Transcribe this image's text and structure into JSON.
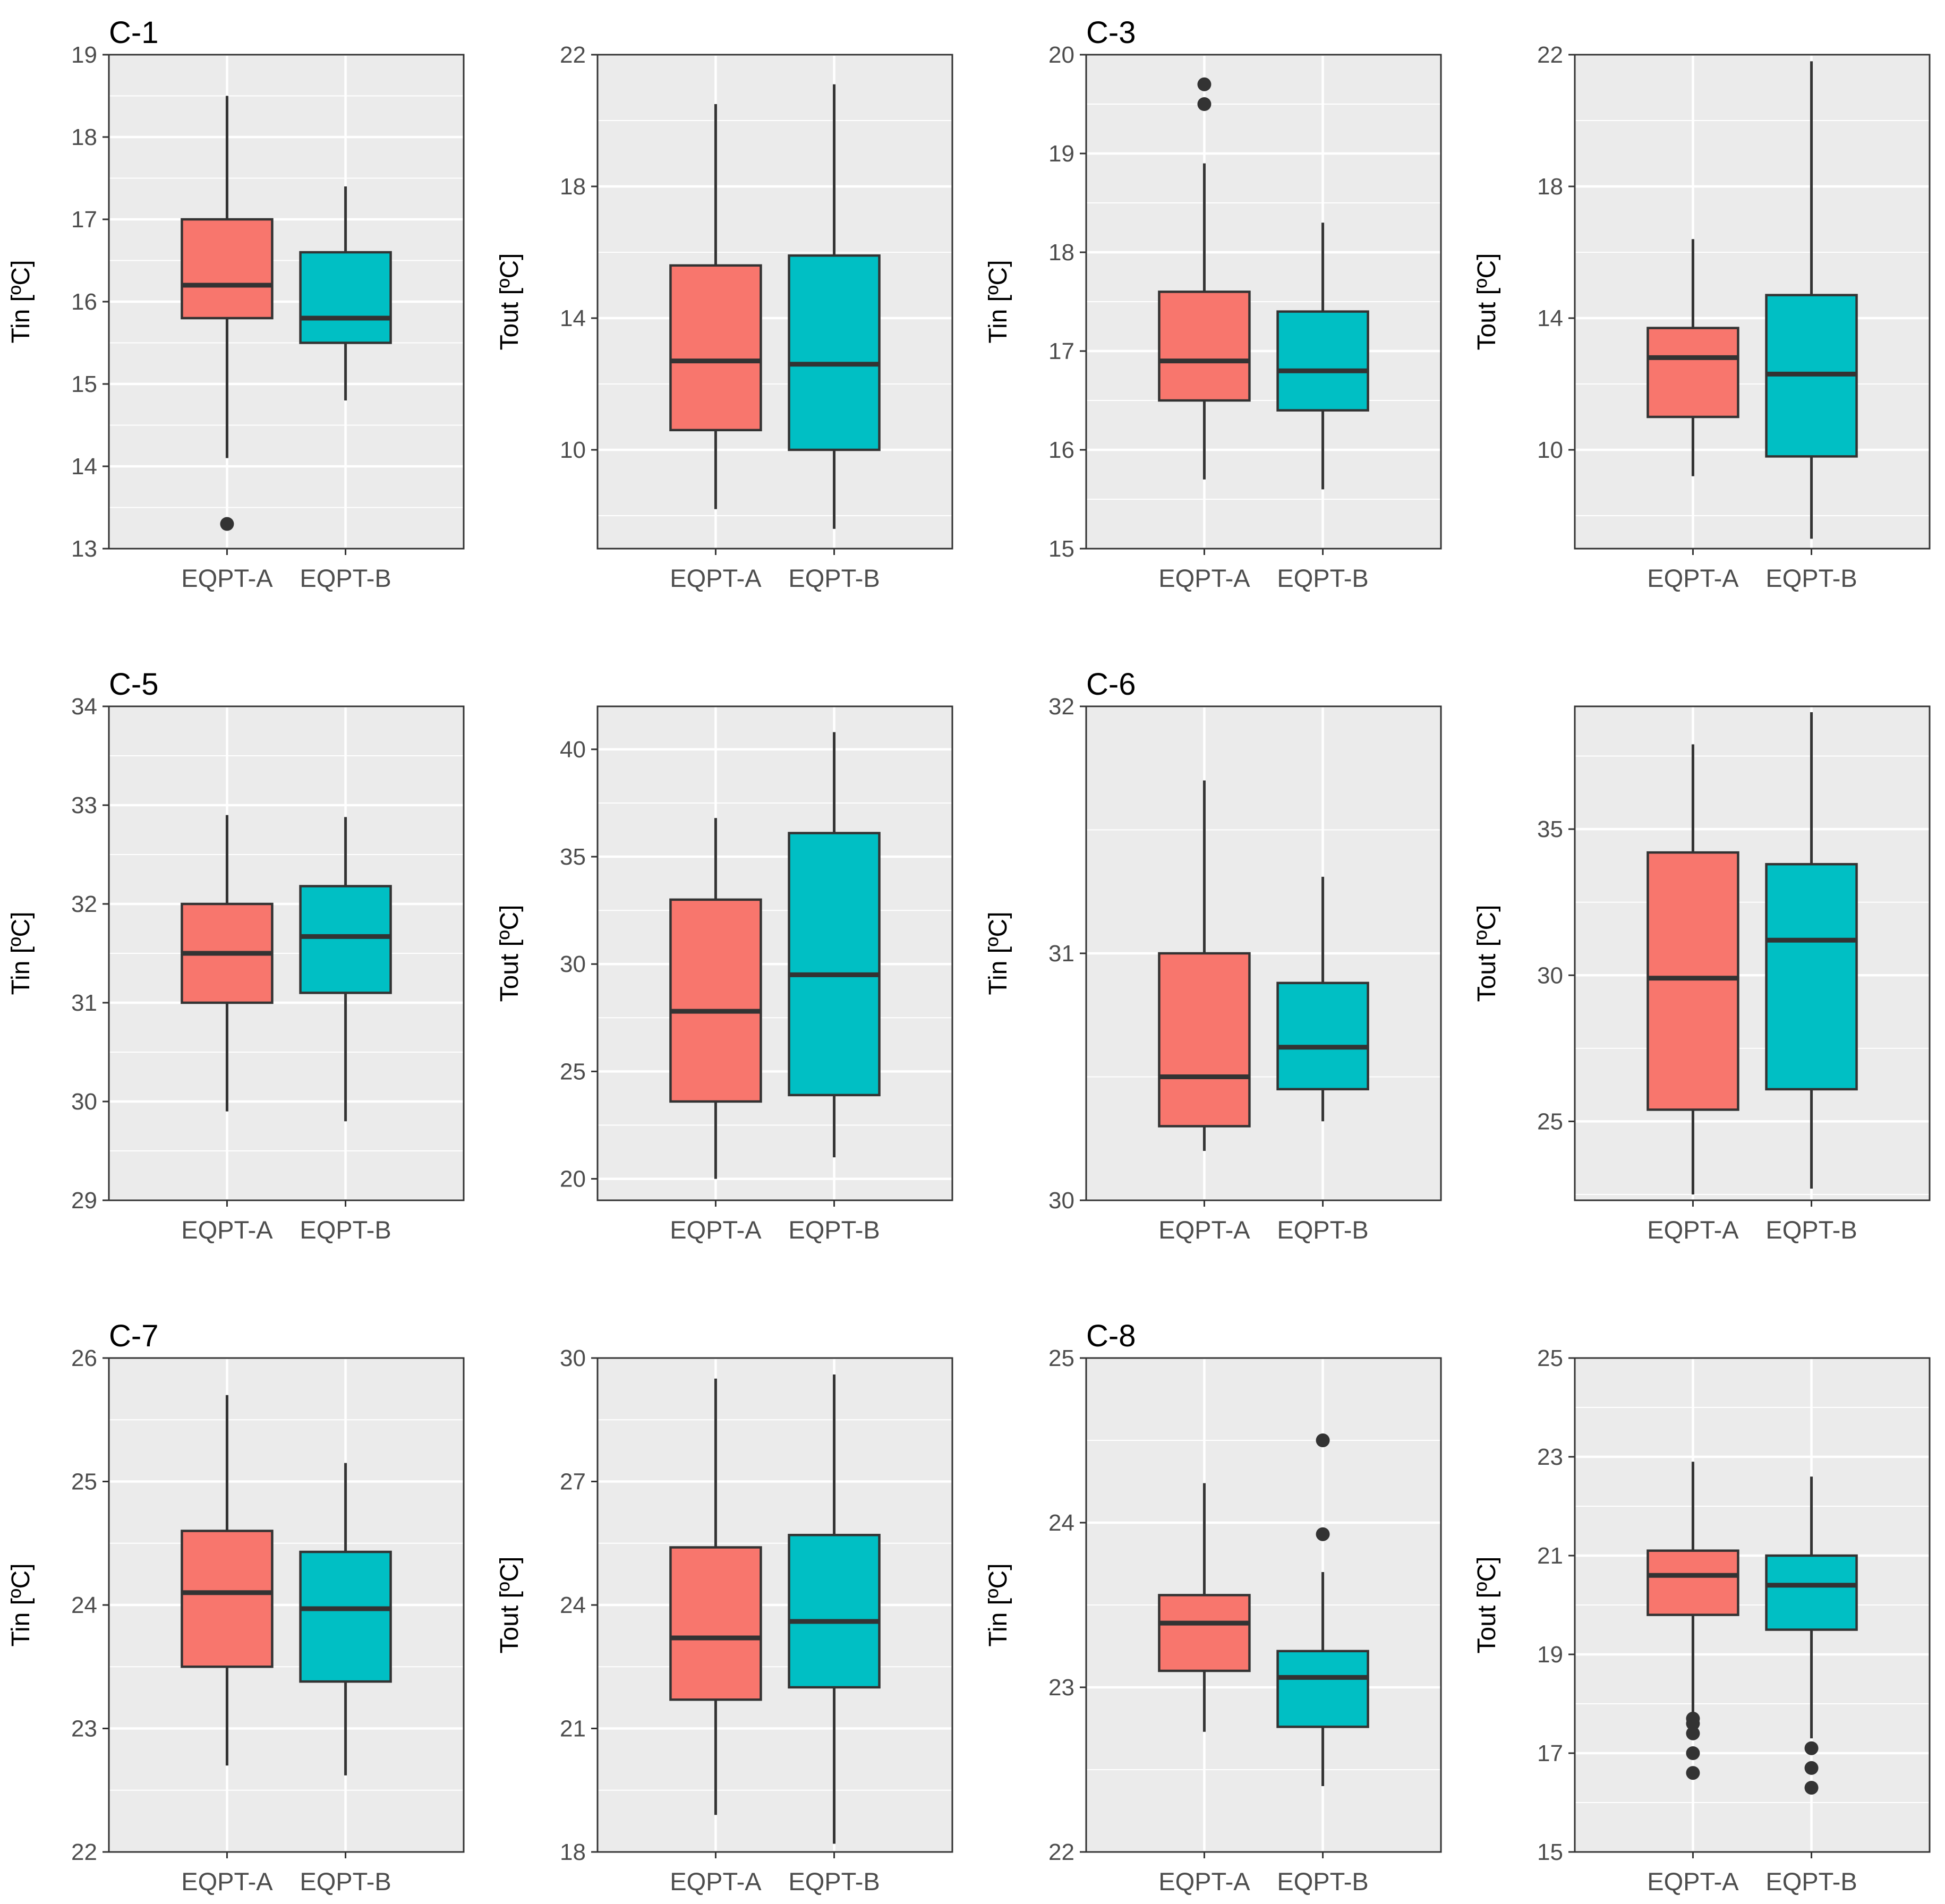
{
  "colors": {
    "eqpt_a": "#F8766D",
    "eqpt_b": "#00BFC4",
    "panel_bg": "#EBEBEB",
    "grid": "#FFFFFF",
    "ink": "#333333",
    "tick_text": "#4D4D4D",
    "title_text": "#000000"
  },
  "chart_data": [
    {
      "type": "boxplot",
      "title": "C-1",
      "ylabel": "Tin [ºC]",
      "categories": [
        "EQPT-A",
        "EQPT-B"
      ],
      "ylim": [
        13,
        19
      ],
      "yticks": [
        13,
        14,
        15,
        16,
        17,
        18,
        19
      ],
      "ytick_labels": [
        "13",
        "14",
        "15",
        "16",
        "17",
        "18",
        "19"
      ],
      "series": [
        {
          "name": "EQPT-A",
          "whisker_low": 14.1,
          "q1": 15.8,
          "median": 16.2,
          "q3": 17.0,
          "whisker_high": 18.5,
          "outliers": [
            13.3
          ]
        },
        {
          "name": "EQPT-B",
          "whisker_low": 14.8,
          "q1": 15.5,
          "median": 15.8,
          "q3": 16.6,
          "whisker_high": 17.4,
          "outliers": []
        }
      ]
    },
    {
      "type": "boxplot",
      "title": "",
      "ylabel": "Tout [ºC]",
      "categories": [
        "EQPT-A",
        "EQPT-B"
      ],
      "ylim": [
        7,
        22
      ],
      "yticks": [
        10,
        14,
        18,
        22
      ],
      "ytick_labels": [
        "10",
        "14",
        "18",
        "22"
      ],
      "series": [
        {
          "name": "EQPT-A",
          "whisker_low": 8.2,
          "q1": 10.6,
          "median": 12.7,
          "q3": 15.6,
          "whisker_high": 20.5,
          "outliers": []
        },
        {
          "name": "EQPT-B",
          "whisker_low": 7.6,
          "q1": 10.0,
          "median": 12.6,
          "q3": 15.9,
          "whisker_high": 21.1,
          "outliers": []
        }
      ]
    },
    {
      "type": "boxplot",
      "title": "C-3",
      "ylabel": "Tin [ºC]",
      "categories": [
        "EQPT-A",
        "EQPT-B"
      ],
      "ylim": [
        15,
        20
      ],
      "yticks": [
        15,
        16,
        17,
        18,
        19,
        20
      ],
      "ytick_labels": [
        "15",
        "16",
        "17",
        "18",
        "19",
        "20"
      ],
      "series": [
        {
          "name": "EQPT-A",
          "whisker_low": 15.7,
          "q1": 16.5,
          "median": 16.9,
          "q3": 17.6,
          "whisker_high": 18.9,
          "outliers": [
            19.5,
            19.7
          ]
        },
        {
          "name": "EQPT-B",
          "whisker_low": 15.6,
          "q1": 16.4,
          "median": 16.8,
          "q3": 17.4,
          "whisker_high": 18.3,
          "outliers": []
        }
      ]
    },
    {
      "type": "boxplot",
      "title": "",
      "ylabel": "Tout [ºC]",
      "categories": [
        "EQPT-A",
        "EQPT-B"
      ],
      "ylim": [
        7,
        22
      ],
      "yticks": [
        10,
        14,
        18,
        22
      ],
      "ytick_labels": [
        "10",
        "14",
        "18",
        "22"
      ],
      "series": [
        {
          "name": "EQPT-A",
          "whisker_low": 9.2,
          "q1": 11.0,
          "median": 12.8,
          "q3": 13.7,
          "whisker_high": 16.4,
          "outliers": []
        },
        {
          "name": "EQPT-B",
          "whisker_low": 7.3,
          "q1": 9.8,
          "median": 12.3,
          "q3": 14.7,
          "whisker_high": 21.8,
          "outliers": []
        }
      ]
    },
    {
      "type": "boxplot",
      "title": "C-5",
      "ylabel": "Tin [ºC]",
      "categories": [
        "EQPT-A",
        "EQPT-B"
      ],
      "ylim": [
        29,
        34
      ],
      "yticks": [
        29,
        30,
        31,
        32,
        33,
        34
      ],
      "ytick_labels": [
        "29",
        "30",
        "31",
        "32",
        "33",
        "34"
      ],
      "series": [
        {
          "name": "EQPT-A",
          "whisker_low": 29.9,
          "q1": 31.0,
          "median": 31.5,
          "q3": 32.0,
          "whisker_high": 32.9,
          "outliers": []
        },
        {
          "name": "EQPT-B",
          "whisker_low": 29.8,
          "q1": 31.1,
          "median": 31.67,
          "q3": 32.18,
          "whisker_high": 32.88,
          "outliers": []
        }
      ]
    },
    {
      "type": "boxplot",
      "title": "",
      "ylabel": "Tout [ºC]",
      "categories": [
        "EQPT-A",
        "EQPT-B"
      ],
      "ylim": [
        19,
        42
      ],
      "yticks": [
        20,
        25,
        30,
        35,
        40
      ],
      "ytick_labels": [
        "20",
        "25",
        "30",
        "35",
        "40"
      ],
      "series": [
        {
          "name": "EQPT-A",
          "whisker_low": 20.0,
          "q1": 23.6,
          "median": 27.8,
          "q3": 33.0,
          "whisker_high": 36.8,
          "outliers": []
        },
        {
          "name": "EQPT-B",
          "whisker_low": 21.0,
          "q1": 23.9,
          "median": 29.5,
          "q3": 36.1,
          "whisker_high": 40.8,
          "outliers": []
        }
      ]
    },
    {
      "type": "boxplot",
      "title": "C-6",
      "ylabel": "Tin [ºC]",
      "categories": [
        "EQPT-A",
        "EQPT-B"
      ],
      "ylim": [
        30,
        32
      ],
      "yticks": [
        30,
        31,
        32
      ],
      "ytick_labels": [
        "30",
        "31",
        "32"
      ],
      "series": [
        {
          "name": "EQPT-A",
          "whisker_low": 30.2,
          "q1": 30.3,
          "median": 30.5,
          "q3": 31.0,
          "whisker_high": 31.7,
          "outliers": []
        },
        {
          "name": "EQPT-B",
          "whisker_low": 30.32,
          "q1": 30.45,
          "median": 30.62,
          "q3": 30.88,
          "whisker_high": 31.31,
          "outliers": []
        }
      ]
    },
    {
      "type": "boxplot",
      "title": "",
      "ylabel": "Tout [ºC]",
      "categories": [
        "EQPT-A",
        "EQPT-B"
      ],
      "ylim": [
        22.3,
        39.2
      ],
      "yticks": [
        25,
        30,
        35
      ],
      "ytick_labels": [
        "25",
        "30",
        "35"
      ],
      "series": [
        {
          "name": "EQPT-A",
          "whisker_low": 22.5,
          "q1": 25.4,
          "median": 29.9,
          "q3": 34.2,
          "whisker_high": 37.9,
          "outliers": []
        },
        {
          "name": "EQPT-B",
          "whisker_low": 22.7,
          "q1": 26.1,
          "median": 31.2,
          "q3": 33.8,
          "whisker_high": 39.0,
          "outliers": []
        }
      ]
    },
    {
      "type": "boxplot",
      "title": "C-7",
      "ylabel": "Tin [ºC]",
      "categories": [
        "EQPT-A",
        "EQPT-B"
      ],
      "ylim": [
        22,
        26
      ],
      "yticks": [
        22,
        23,
        24,
        25,
        26
      ],
      "ytick_labels": [
        "22",
        "23",
        "24",
        "25",
        "26"
      ],
      "series": [
        {
          "name": "EQPT-A",
          "whisker_low": 22.7,
          "q1": 23.5,
          "median": 24.1,
          "q3": 24.6,
          "whisker_high": 25.7,
          "outliers": []
        },
        {
          "name": "EQPT-B",
          "whisker_low": 22.62,
          "q1": 23.38,
          "median": 23.97,
          "q3": 24.43,
          "whisker_high": 25.15,
          "outliers": []
        }
      ]
    },
    {
      "type": "boxplot",
      "title": "",
      "ylabel": "Tout [ºC]",
      "categories": [
        "EQPT-A",
        "EQPT-B"
      ],
      "ylim": [
        18,
        30
      ],
      "yticks": [
        18,
        21,
        24,
        27,
        30
      ],
      "ytick_labels": [
        "18",
        "21",
        "24",
        "27",
        "30"
      ],
      "series": [
        {
          "name": "EQPT-A",
          "whisker_low": 18.9,
          "q1": 21.7,
          "median": 23.2,
          "q3": 25.4,
          "whisker_high": 29.5,
          "outliers": []
        },
        {
          "name": "EQPT-B",
          "whisker_low": 18.2,
          "q1": 22.0,
          "median": 23.6,
          "q3": 25.7,
          "whisker_high": 29.6,
          "outliers": []
        }
      ]
    },
    {
      "type": "boxplot",
      "title": "C-8",
      "ylabel": "Tin [ºC]",
      "categories": [
        "EQPT-A",
        "EQPT-B"
      ],
      "ylim": [
        22,
        25
      ],
      "yticks": [
        22,
        23,
        24,
        25
      ],
      "ytick_labels": [
        "22",
        "23",
        "24",
        "25"
      ],
      "series": [
        {
          "name": "EQPT-A",
          "whisker_low": 22.73,
          "q1": 23.1,
          "median": 23.39,
          "q3": 23.56,
          "whisker_high": 24.24,
          "outliers": []
        },
        {
          "name": "EQPT-B",
          "whisker_low": 22.4,
          "q1": 22.76,
          "median": 23.06,
          "q3": 23.22,
          "whisker_high": 23.7,
          "outliers": [
            23.93,
            24.5
          ]
        }
      ]
    },
    {
      "type": "boxplot",
      "title": "",
      "ylabel": "Tout [ºC]",
      "categories": [
        "EQPT-A",
        "EQPT-B"
      ],
      "ylim": [
        15,
        25
      ],
      "yticks": [
        15,
        17,
        19,
        21,
        23,
        25
      ],
      "ytick_labels": [
        "15",
        "17",
        "19",
        "21",
        "23",
        "25"
      ],
      "series": [
        {
          "name": "EQPT-A",
          "whisker_low": 17.8,
          "q1": 19.8,
          "median": 20.6,
          "q3": 21.1,
          "whisker_high": 22.9,
          "outliers": [
            16.6,
            17.0,
            17.4,
            17.6,
            17.7
          ]
        },
        {
          "name": "EQPT-B",
          "whisker_low": 17.3,
          "q1": 19.5,
          "median": 20.4,
          "q3": 21.0,
          "whisker_high": 22.6,
          "outliers": [
            16.3,
            16.7,
            17.1
          ]
        }
      ]
    }
  ]
}
